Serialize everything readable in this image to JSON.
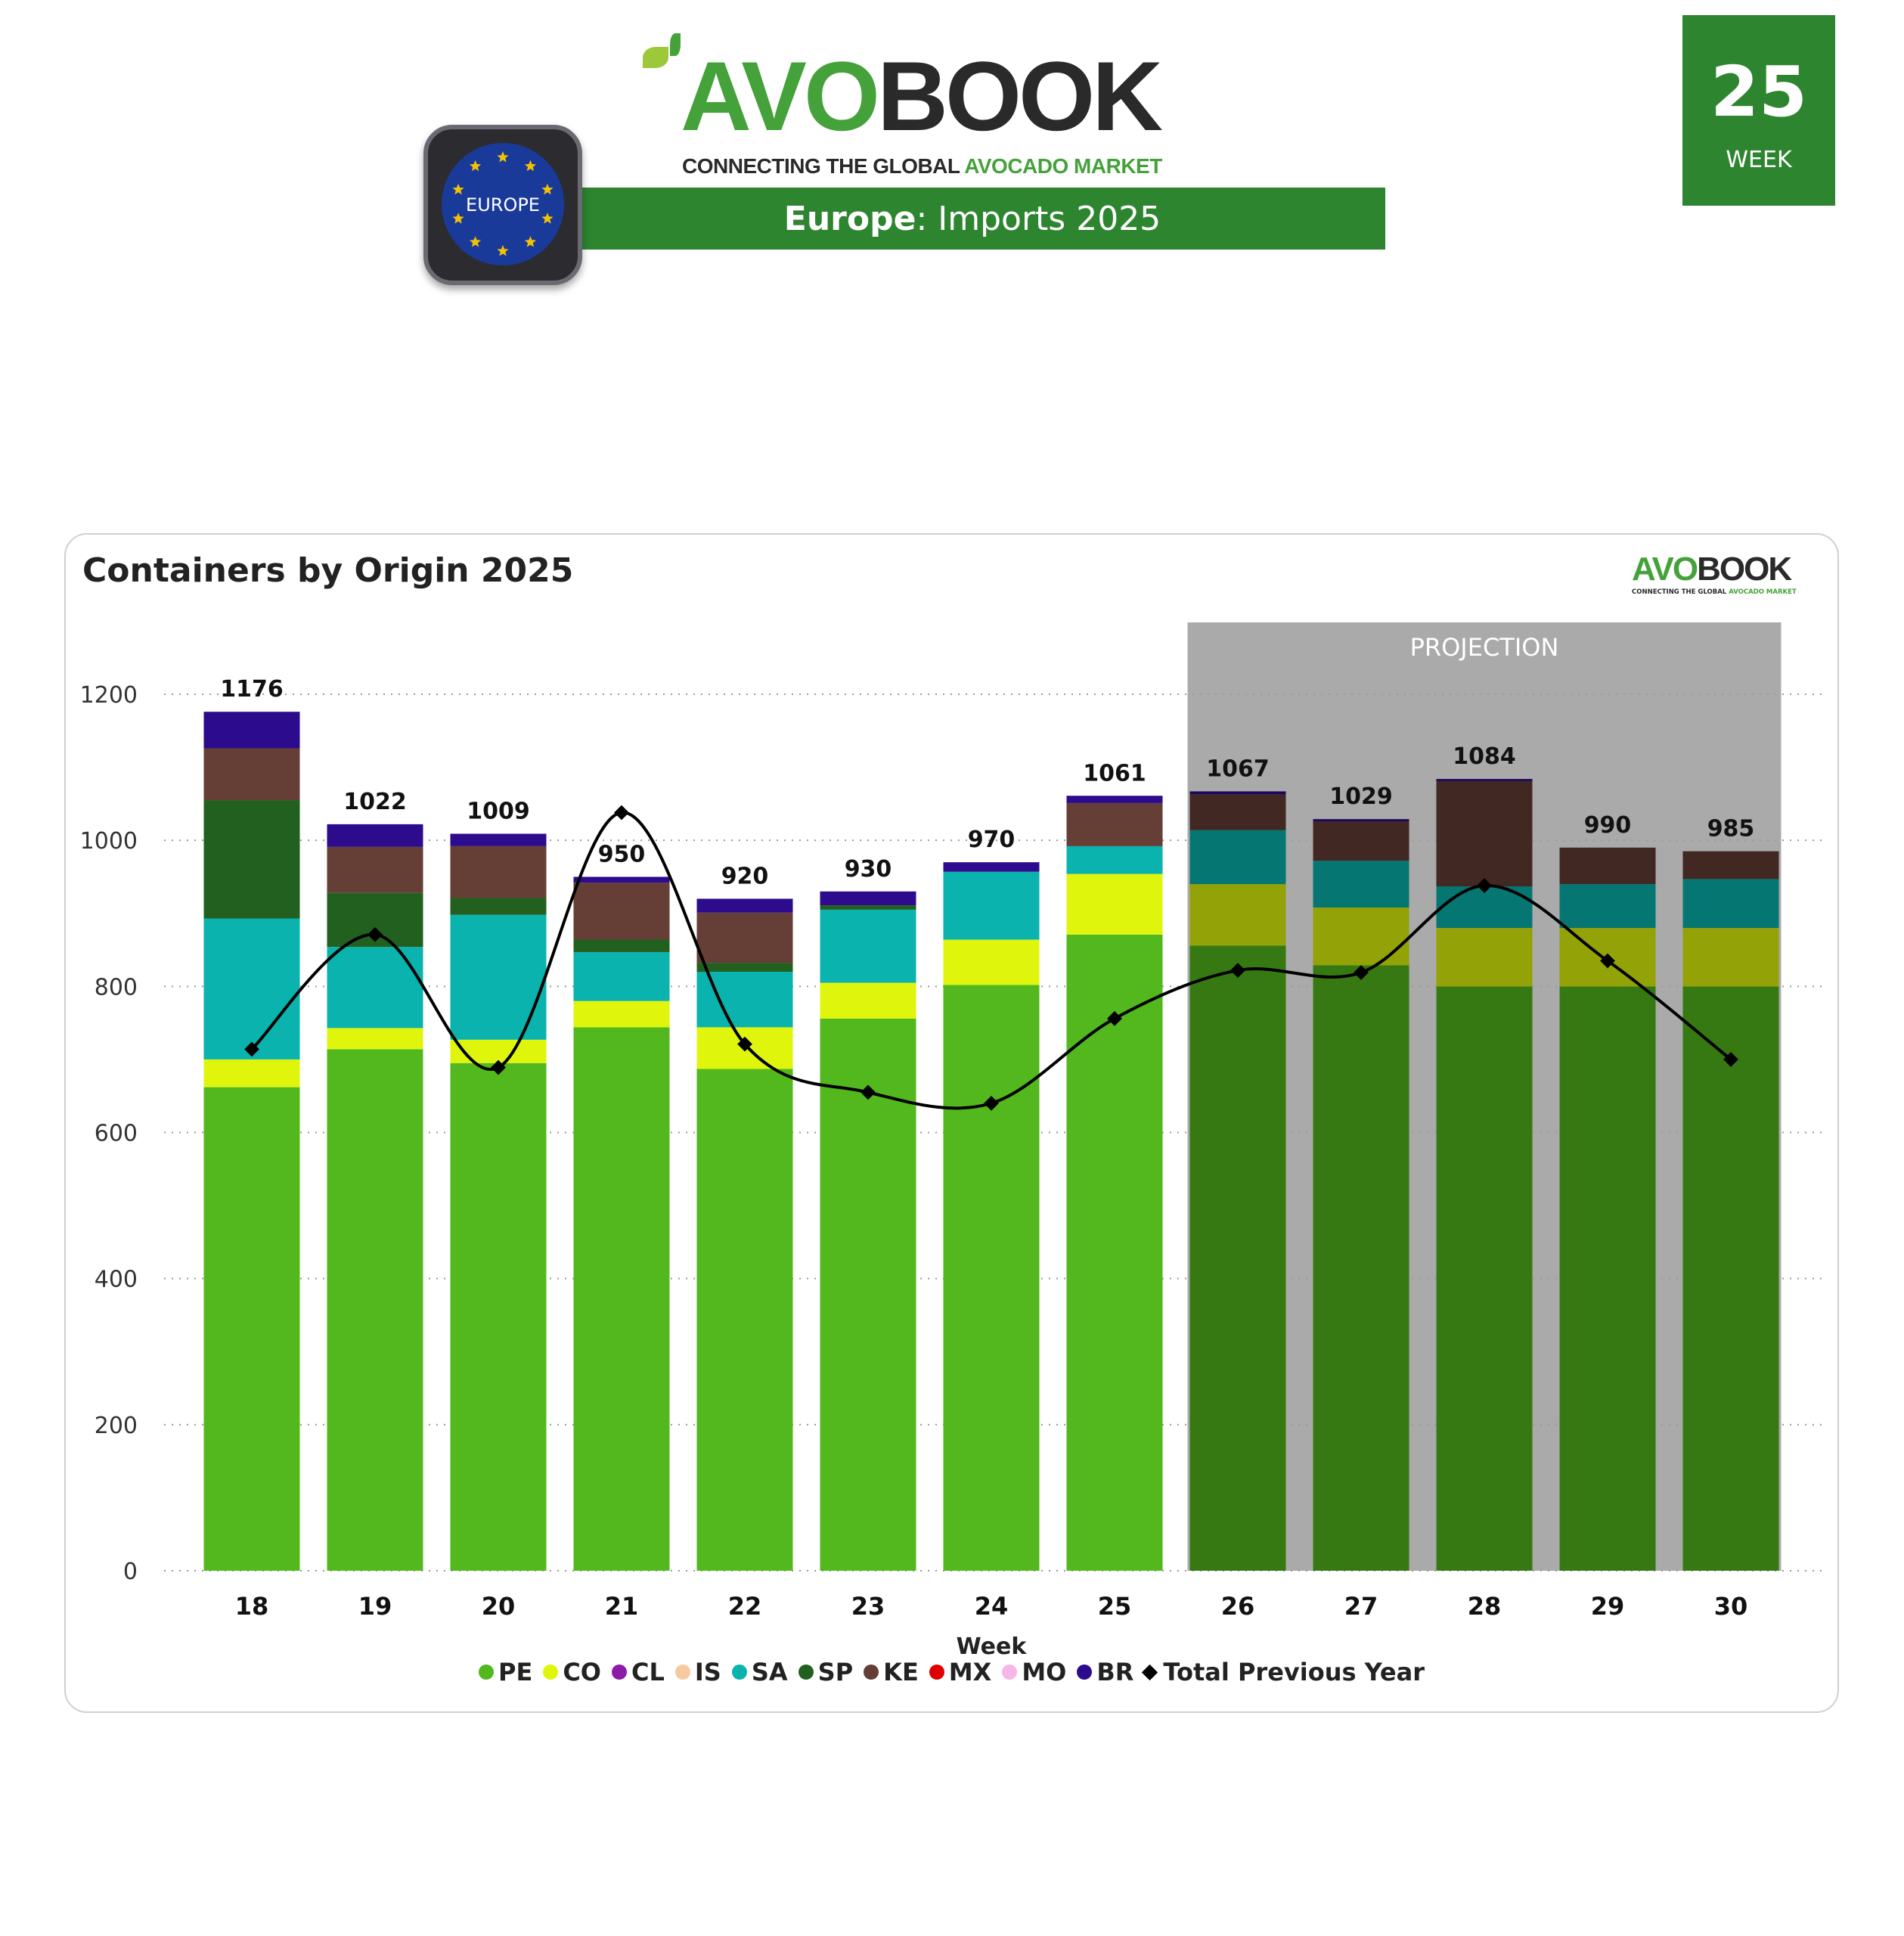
{
  "header": {
    "logo_word_green": "AVO",
    "logo_word_dark": "BOOK",
    "logo_tagline_dark": "CONNECTING THE GLOBAL",
    "logo_tagline_green": "AVOCADO MARKET",
    "region_badge": "EUROPE",
    "title_region": "Europe",
    "title_rest": ": Imports 2025",
    "week_number": "25",
    "week_label": "WEEK"
  },
  "colors": {
    "brand_green": "#2e8530",
    "logo_green": "#45a23a",
    "projection_bg": "#aaaaaa"
  },
  "chart_data": {
    "type": "bar",
    "stacked": true,
    "title": "Containers by Origin 2025",
    "xlabel": "Week",
    "ylabel": "",
    "ylim": [
      0,
      1300
    ],
    "yticks": [
      0,
      200,
      400,
      600,
      800,
      1000,
      1200
    ],
    "grid": "horizontal dotted",
    "legend": "bottom",
    "projection_label": "PROJECTION",
    "projection_weeks": [
      "26",
      "27",
      "28",
      "29",
      "30"
    ],
    "categories": [
      "18",
      "19",
      "20",
      "21",
      "22",
      "23",
      "24",
      "25",
      "26",
      "27",
      "28",
      "29",
      "30"
    ],
    "totals": [
      1176,
      1022,
      1009,
      950,
      920,
      930,
      970,
      1061,
      1067,
      1029,
      1084,
      990,
      985
    ],
    "series": [
      {
        "name": "PE",
        "color": "#52b81d",
        "values": [
          662,
          714,
          695,
          744,
          687,
          756,
          802,
          871,
          856,
          829,
          800,
          800,
          800
        ]
      },
      {
        "name": "CO",
        "color": "#dff60c",
        "values": [
          38,
          29,
          32,
          36,
          57,
          49,
          62,
          83,
          84,
          79,
          80,
          80,
          80
        ]
      },
      {
        "name": "CL",
        "color": "#8e1aa8",
        "values": [
          0,
          0,
          0,
          0,
          0,
          0,
          0,
          0,
          0,
          0,
          0,
          0,
          0
        ]
      },
      {
        "name": "IS",
        "color": "#f6c9a0",
        "values": [
          0,
          0,
          0,
          0,
          0,
          0,
          0,
          0,
          0,
          0,
          0,
          0,
          0
        ]
      },
      {
        "name": "SA",
        "color": "#0ab3ad",
        "values": [
          193,
          111,
          171,
          67,
          76,
          100,
          93,
          38,
          74,
          64,
          57,
          60,
          67
        ]
      },
      {
        "name": "SP",
        "color": "#22601f",
        "values": [
          162,
          74,
          23,
          17,
          12,
          6,
          0,
          0,
          0,
          0,
          0,
          0,
          0
        ]
      },
      {
        "name": "KE",
        "color": "#653e36",
        "values": [
          71,
          63,
          71,
          78,
          69,
          0,
          0,
          59,
          49,
          54,
          144,
          50,
          38
        ]
      },
      {
        "name": "MX",
        "color": "#e00000",
        "values": [
          0,
          0,
          0,
          0,
          0,
          0,
          0,
          0,
          0,
          0,
          0,
          0,
          0
        ]
      },
      {
        "name": "MO",
        "color": "#f6b6e6",
        "values": [
          0,
          0,
          0,
          0,
          0,
          0,
          0,
          0,
          0,
          0,
          0,
          0,
          0
        ]
      },
      {
        "name": "BR",
        "color": "#2c0b8d",
        "values": [
          50,
          31,
          17,
          8,
          19,
          19,
          13,
          10,
          4,
          3,
          3,
          0,
          0
        ]
      }
    ],
    "line_series": {
      "name": "Total Previous Year",
      "color": "#000000",
      "values": [
        714,
        871,
        689,
        1038,
        721,
        655,
        640,
        756,
        822,
        819,
        938,
        835,
        700
      ]
    }
  }
}
